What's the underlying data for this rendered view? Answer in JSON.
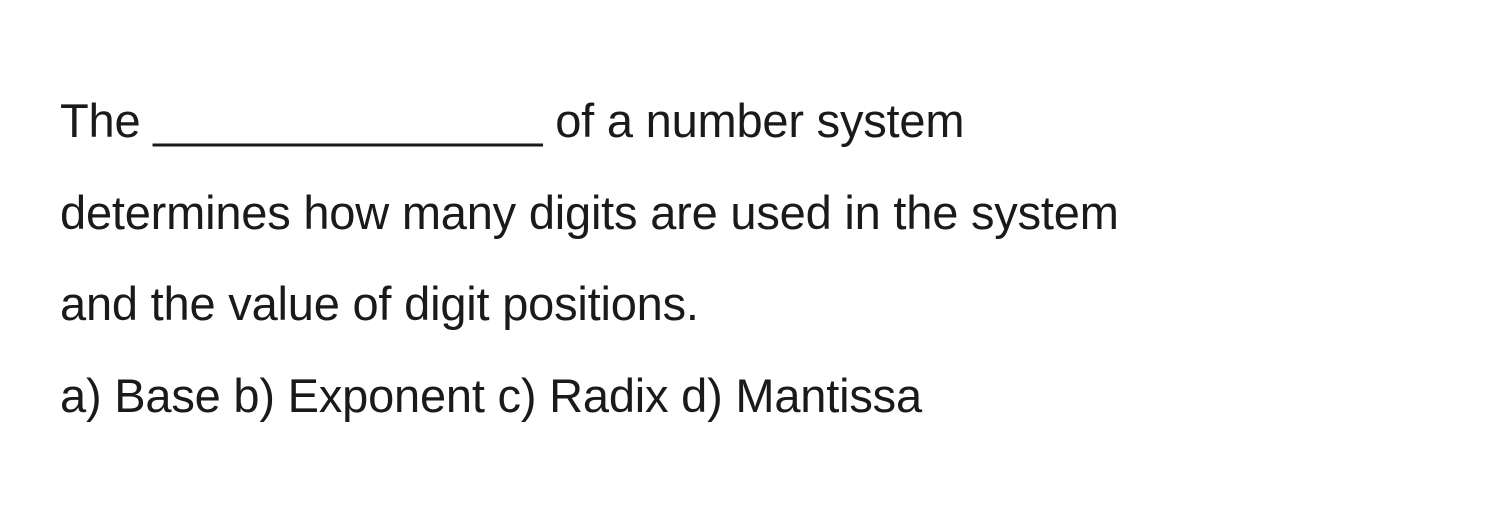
{
  "question": {
    "stem_line1": "The _______________ of a number system",
    "stem_line2": "determines how many digits are used in the system",
    "stem_line3": "and the value of digit positions.",
    "options_line": "a) Base b) Exponent c) Radix d) Mantissa",
    "font_size": 47,
    "line_height": 1.95,
    "text_color": "#1a1a1a",
    "background_color": "#ffffff"
  }
}
